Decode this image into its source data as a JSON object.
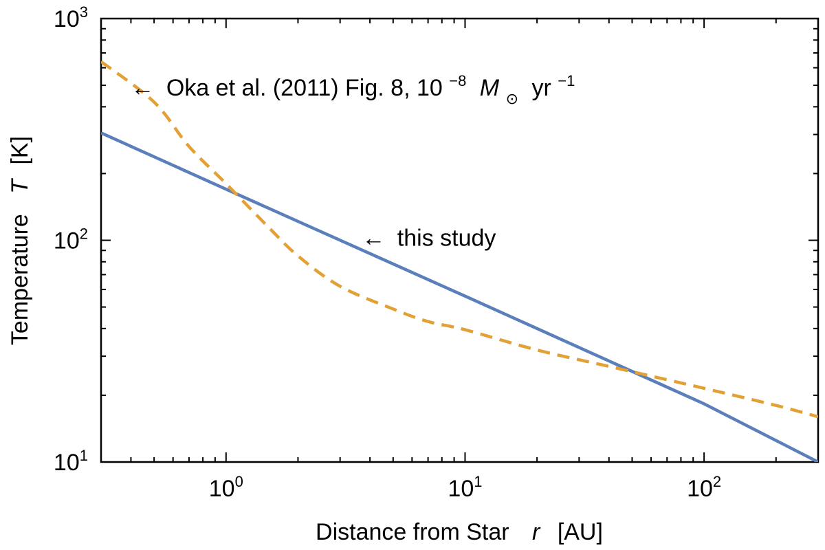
{
  "chart_data": {
    "type": "line",
    "xscale": "log",
    "yscale": "log",
    "xlim": [
      0.3,
      300
    ],
    "ylim": [
      10,
      1000
    ],
    "grid": false,
    "xlabel": {
      "text": "Distance from Star",
      "symbol": "r",
      "unit": "[AU]"
    },
    "ylabel": {
      "text": "Temperature",
      "symbol": "T",
      "unit": "[K]"
    },
    "x_ticks": [
      {
        "base": "10",
        "exp": "0",
        "value": 1
      },
      {
        "base": "10",
        "exp": "1",
        "value": 10
      },
      {
        "base": "10",
        "exp": "2",
        "value": 100
      }
    ],
    "y_ticks": [
      {
        "base": "10",
        "exp": "1",
        "value": 10
      },
      {
        "base": "10",
        "exp": "2",
        "value": 100
      },
      {
        "base": "10",
        "exp": "3",
        "value": 1000
      }
    ],
    "series": [
      {
        "key": "this_study",
        "color": "#5a7fba",
        "style": "solid",
        "x": [
          0.3,
          1,
          10,
          100,
          300
        ],
        "y": [
          305,
          170,
          56,
          18.3,
          10
        ]
      },
      {
        "key": "oka",
        "color": "#e2a035",
        "style": "dashed",
        "x": [
          0.3,
          0.5,
          0.7,
          1,
          1.5,
          2,
          3,
          5,
          7,
          10,
          20,
          40,
          70,
          100,
          200,
          300
        ],
        "y": [
          640,
          420,
          265,
          180,
          115,
          85,
          62,
          49,
          43,
          39.5,
          32,
          27,
          23.5,
          21.5,
          18,
          16
        ]
      }
    ],
    "annotations": [
      {
        "key": "oka",
        "arrow": "←",
        "text": "Oka et al. (2011) Fig. 8, 10",
        "exp": "−8",
        "msun": "M",
        "msun_sub": "⊙",
        "tail": "yr",
        "tail_exp": "−1",
        "at": {
          "x": 0.4,
          "y": 490
        }
      },
      {
        "key": "this_study",
        "arrow": "←",
        "text": "this study",
        "at": {
          "x": 3.7,
          "y": 100
        }
      }
    ]
  }
}
